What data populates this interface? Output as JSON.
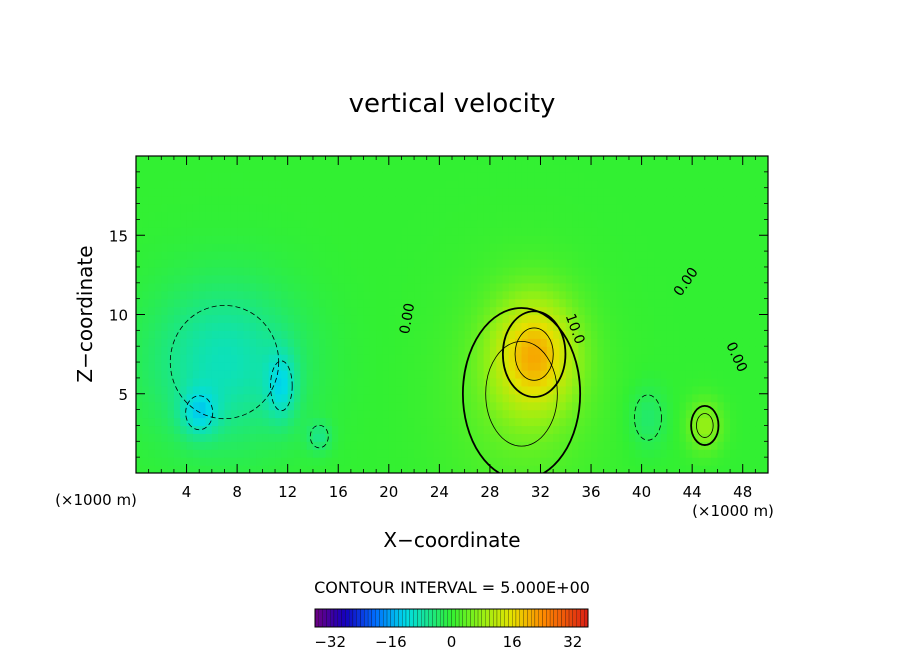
{
  "chart_data": {
    "type": "heatmap",
    "title": "vertical velocity",
    "xlabel": "X−coordinate",
    "ylabel": "Z−coordinate",
    "x_unit_left": "(×1000 m)",
    "x_unit_right": "(×1000 m)",
    "xlim": [
      0,
      50
    ],
    "ylim": [
      0,
      20
    ],
    "x_ticks": [
      4,
      8,
      12,
      16,
      20,
      24,
      28,
      32,
      36,
      40,
      44,
      48
    ],
    "y_ticks": [
      5,
      10,
      15
    ],
    "contour_interval_text": "CONTOUR INTERVAL = 5.000E+00",
    "contour_labels": [
      {
        "text": "0.00",
        "x": 21.8,
        "y": 9.7,
        "rotate": -80
      },
      {
        "text": "10.0",
        "x": 34.4,
        "y": 9.0,
        "rotate": 70
      },
      {
        "text": "0.00",
        "x": 43.8,
        "y": 11.9,
        "rotate": -55
      },
      {
        "text": "0.00",
        "x": 47.2,
        "y": 7.2,
        "rotate": 65
      }
    ],
    "colorbar": {
      "min": -36,
      "max": 36,
      "ticks": [
        -32,
        -16,
        0,
        16,
        32
      ]
    },
    "features": [
      {
        "kind": "updraft",
        "x": 31.5,
        "z": 7.5,
        "peak": 18,
        "sx": 3.2,
        "sz": 3.5
      },
      {
        "kind": "updraft",
        "x": 30.5,
        "z": 5.0,
        "peak": 4,
        "sx": 6.0,
        "sz": 7.0
      },
      {
        "kind": "updraft",
        "x": 45.0,
        "z": 3.0,
        "peak": 8,
        "sx": 1.4,
        "sz": 1.6
      },
      {
        "kind": "downdraft",
        "x": 7.0,
        "z": 7.0,
        "peak": -9,
        "sx": 6.0,
        "sz": 5.0
      },
      {
        "kind": "downdraft",
        "x": 5.0,
        "z": 3.8,
        "peak": -8,
        "sx": 1.5,
        "sz": 1.5
      },
      {
        "kind": "downdraft",
        "x": 11.5,
        "z": 5.5,
        "peak": -8,
        "sx": 1.2,
        "sz": 2.2
      },
      {
        "kind": "downdraft",
        "x": 14.5,
        "z": 2.3,
        "peak": -5,
        "sx": 1.0,
        "sz": 1.0
      },
      {
        "kind": "downdraft",
        "x": 40.5,
        "z": 3.5,
        "peak": -4,
        "sx": 1.5,
        "sz": 2.0
      }
    ]
  }
}
